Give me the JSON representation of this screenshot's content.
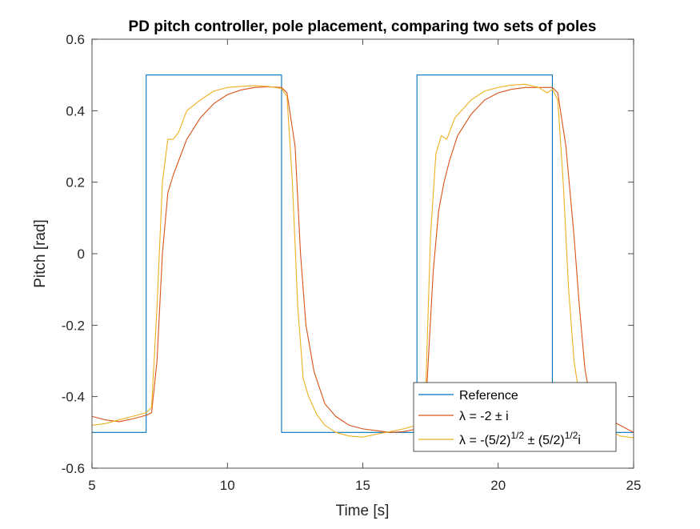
{
  "chart_data": {
    "type": "line",
    "title": "PD pitch controller, pole placement, comparing two sets of poles",
    "xlabel": "Time [s]",
    "ylabel": "Pitch [rad]",
    "xlim": [
      5,
      25
    ],
    "ylim": [
      -0.6,
      0.6
    ],
    "xticks": [
      5,
      10,
      15,
      20,
      25
    ],
    "xtick_labels": [
      "5",
      "10",
      "15",
      "20",
      "25"
    ],
    "yticks": [
      -0.6,
      -0.4,
      -0.2,
      0,
      0.2,
      0.4,
      0.6
    ],
    "ytick_labels": [
      "-0.6",
      "-0.4",
      "-0.2",
      "0",
      "0.2",
      "0.4",
      "0.6"
    ],
    "grid": false,
    "legend": "bottom-right",
    "series": [
      {
        "name": "Reference",
        "color": "#0072BD",
        "points": [
          [
            5,
            -0.5
          ],
          [
            7,
            -0.5
          ],
          [
            7,
            0.5
          ],
          [
            12,
            0.5
          ],
          [
            12,
            -0.5
          ],
          [
            17,
            -0.5
          ],
          [
            17,
            0.5
          ],
          [
            22,
            0.5
          ],
          [
            22,
            -0.5
          ],
          [
            25,
            -0.5
          ]
        ]
      },
      {
        "name": "λ = -2 ± i",
        "color": "#D95319",
        "points": [
          [
            5,
            -0.455
          ],
          [
            5.5,
            -0.465
          ],
          [
            6,
            -0.47
          ],
          [
            6.5,
            -0.462
          ],
          [
            7,
            -0.452
          ],
          [
            7.2,
            -0.445
          ],
          [
            7.4,
            -0.3
          ],
          [
            7.6,
            0.0
          ],
          [
            7.8,
            0.17
          ],
          [
            8,
            0.22
          ],
          [
            8.2,
            0.26
          ],
          [
            8.5,
            0.32
          ],
          [
            9,
            0.38
          ],
          [
            9.5,
            0.42
          ],
          [
            10,
            0.445
          ],
          [
            10.5,
            0.458
          ],
          [
            11,
            0.465
          ],
          [
            11.5,
            0.467
          ],
          [
            12,
            0.465
          ],
          [
            12.2,
            0.45
          ],
          [
            12.5,
            0.3
          ],
          [
            12.7,
            0.0
          ],
          [
            12.9,
            -0.2
          ],
          [
            13.2,
            -0.33
          ],
          [
            13.6,
            -0.42
          ],
          [
            14,
            -0.455
          ],
          [
            14.5,
            -0.48
          ],
          [
            15,
            -0.49
          ],
          [
            15.5,
            -0.495
          ],
          [
            16,
            -0.5
          ],
          [
            16.5,
            -0.498
          ],
          [
            17,
            -0.49
          ],
          [
            17.3,
            -0.46
          ],
          [
            17.6,
            -0.05
          ],
          [
            17.8,
            0.12
          ],
          [
            18,
            0.2
          ],
          [
            18.2,
            0.26
          ],
          [
            18.5,
            0.33
          ],
          [
            19,
            0.39
          ],
          [
            19.5,
            0.43
          ],
          [
            20,
            0.45
          ],
          [
            20.5,
            0.46
          ],
          [
            21,
            0.465
          ],
          [
            21.5,
            0.465
          ],
          [
            22,
            0.465
          ],
          [
            22.2,
            0.45
          ],
          [
            22.5,
            0.3
          ],
          [
            22.8,
            0.05
          ],
          [
            23,
            -0.15
          ],
          [
            23.2,
            -0.32
          ],
          [
            23.4,
            -0.41
          ],
          [
            24,
            -0.46
          ],
          [
            24.5,
            -0.48
          ],
          [
            25,
            -0.5
          ]
        ]
      },
      {
        "name": "λ = -(5/2)^{1/2} ± (5/2)^{1/2}i",
        "color": "#EDB120",
        "points": [
          [
            5,
            -0.48
          ],
          [
            5.5,
            -0.475
          ],
          [
            6,
            -0.465
          ],
          [
            6.5,
            -0.455
          ],
          [
            7,
            -0.445
          ],
          [
            7.2,
            -0.43
          ],
          [
            7.4,
            -0.15
          ],
          [
            7.6,
            0.2
          ],
          [
            7.8,
            0.32
          ],
          [
            8,
            0.32
          ],
          [
            8.2,
            0.34
          ],
          [
            8.5,
            0.4
          ],
          [
            9,
            0.43
          ],
          [
            9.5,
            0.455
          ],
          [
            10,
            0.465
          ],
          [
            10.5,
            0.468
          ],
          [
            11,
            0.47
          ],
          [
            11.5,
            0.468
          ],
          [
            12,
            0.462
          ],
          [
            12.2,
            0.44
          ],
          [
            12.4,
            0.2
          ],
          [
            12.6,
            -0.15
          ],
          [
            12.8,
            -0.35
          ],
          [
            13,
            -0.4
          ],
          [
            13.3,
            -0.45
          ],
          [
            13.6,
            -0.48
          ],
          [
            14,
            -0.5
          ],
          [
            14.5,
            -0.51
          ],
          [
            15,
            -0.513
          ],
          [
            15.5,
            -0.505
          ],
          [
            16,
            -0.498
          ],
          [
            16.5,
            -0.49
          ],
          [
            17,
            -0.48
          ],
          [
            17.3,
            -0.44
          ],
          [
            17.5,
            0.05
          ],
          [
            17.7,
            0.28
          ],
          [
            17.9,
            0.33
          ],
          [
            18.1,
            0.32
          ],
          [
            18.4,
            0.38
          ],
          [
            19,
            0.43
          ],
          [
            19.5,
            0.455
          ],
          [
            20,
            0.465
          ],
          [
            20.5,
            0.472
          ],
          [
            21,
            0.474
          ],
          [
            21.5,
            0.465
          ],
          [
            21.8,
            0.45
          ],
          [
            22,
            0.46
          ],
          [
            22.2,
            0.43
          ],
          [
            22.4,
            0.2
          ],
          [
            22.6,
            -0.1
          ],
          [
            22.8,
            -0.3
          ],
          [
            23,
            -0.4
          ],
          [
            23.2,
            -0.44
          ],
          [
            23.5,
            -0.47
          ],
          [
            24,
            -0.49
          ],
          [
            24.5,
            -0.51
          ],
          [
            25,
            -0.515
          ]
        ]
      }
    ]
  }
}
